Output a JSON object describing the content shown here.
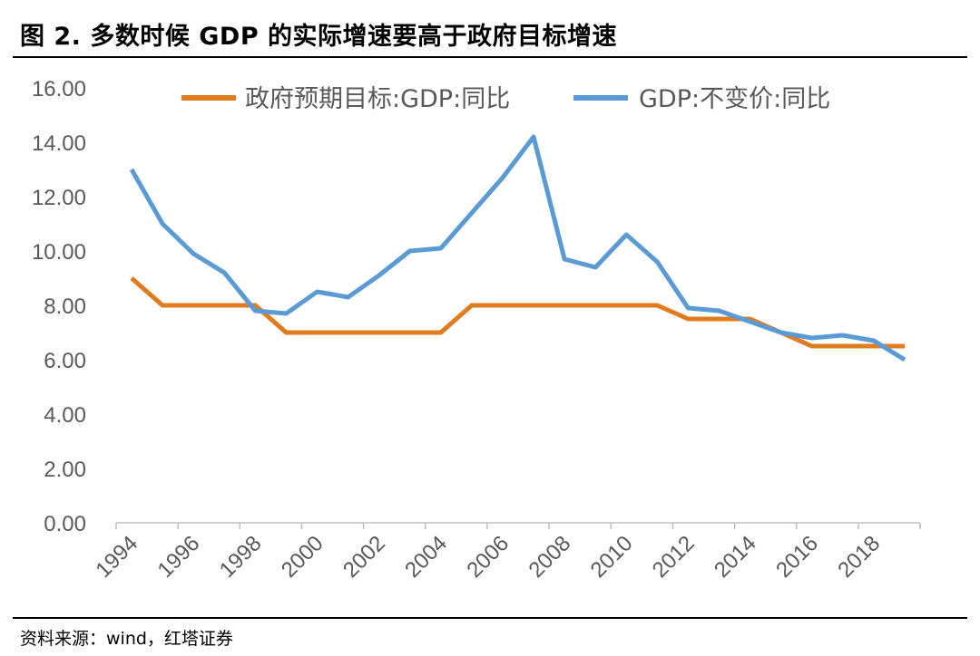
{
  "header": {
    "title": "图 2. 多数时候 GDP 的实际增速要高于政府目标增速"
  },
  "footer": {
    "source": "资料来源：wind，红塔证券"
  },
  "chart_data": {
    "type": "line",
    "title": "图 2. 多数时候 GDP 的实际增速要高于政府目标增速",
    "xlabel": "",
    "ylabel": "",
    "x": [
      1994,
      1995,
      1996,
      1997,
      1998,
      1999,
      2000,
      2001,
      2002,
      2003,
      2004,
      2005,
      2006,
      2007,
      2008,
      2009,
      2010,
      2011,
      2012,
      2013,
      2014,
      2015,
      2016,
      2017,
      2018,
      2019
    ],
    "x_tick_labels": [
      "1994",
      "1996",
      "1998",
      "2000",
      "2002",
      "2004",
      "2006",
      "2008",
      "2010",
      "2012",
      "2014",
      "2016",
      "2018"
    ],
    "y_tick_labels": [
      "0.00",
      "2.00",
      "4.00",
      "6.00",
      "8.00",
      "10.00",
      "12.00",
      "14.00",
      "16.00"
    ],
    "ylim": [
      0,
      16
    ],
    "grid": false,
    "legend_position": "top",
    "series": [
      {
        "name": "政府预期目标:GDP:同比",
        "color": "#E07B1E",
        "values": [
          9,
          8,
          8,
          8,
          8,
          7,
          7,
          7,
          7,
          7,
          7,
          8,
          8,
          8,
          8,
          8,
          8,
          8,
          7.5,
          7.5,
          7.5,
          7,
          6.5,
          6.5,
          6.5,
          6.5
        ]
      },
      {
        "name": "GDP:不变价:同比",
        "color": "#5B9BD5",
        "values": [
          13.0,
          11.0,
          9.9,
          9.2,
          7.8,
          7.7,
          8.5,
          8.3,
          9.1,
          10.0,
          10.1,
          11.4,
          12.7,
          14.2,
          9.7,
          9.4,
          10.6,
          9.6,
          7.9,
          7.8,
          7.4,
          7.0,
          6.8,
          6.9,
          6.7,
          6.0
        ]
      }
    ]
  }
}
